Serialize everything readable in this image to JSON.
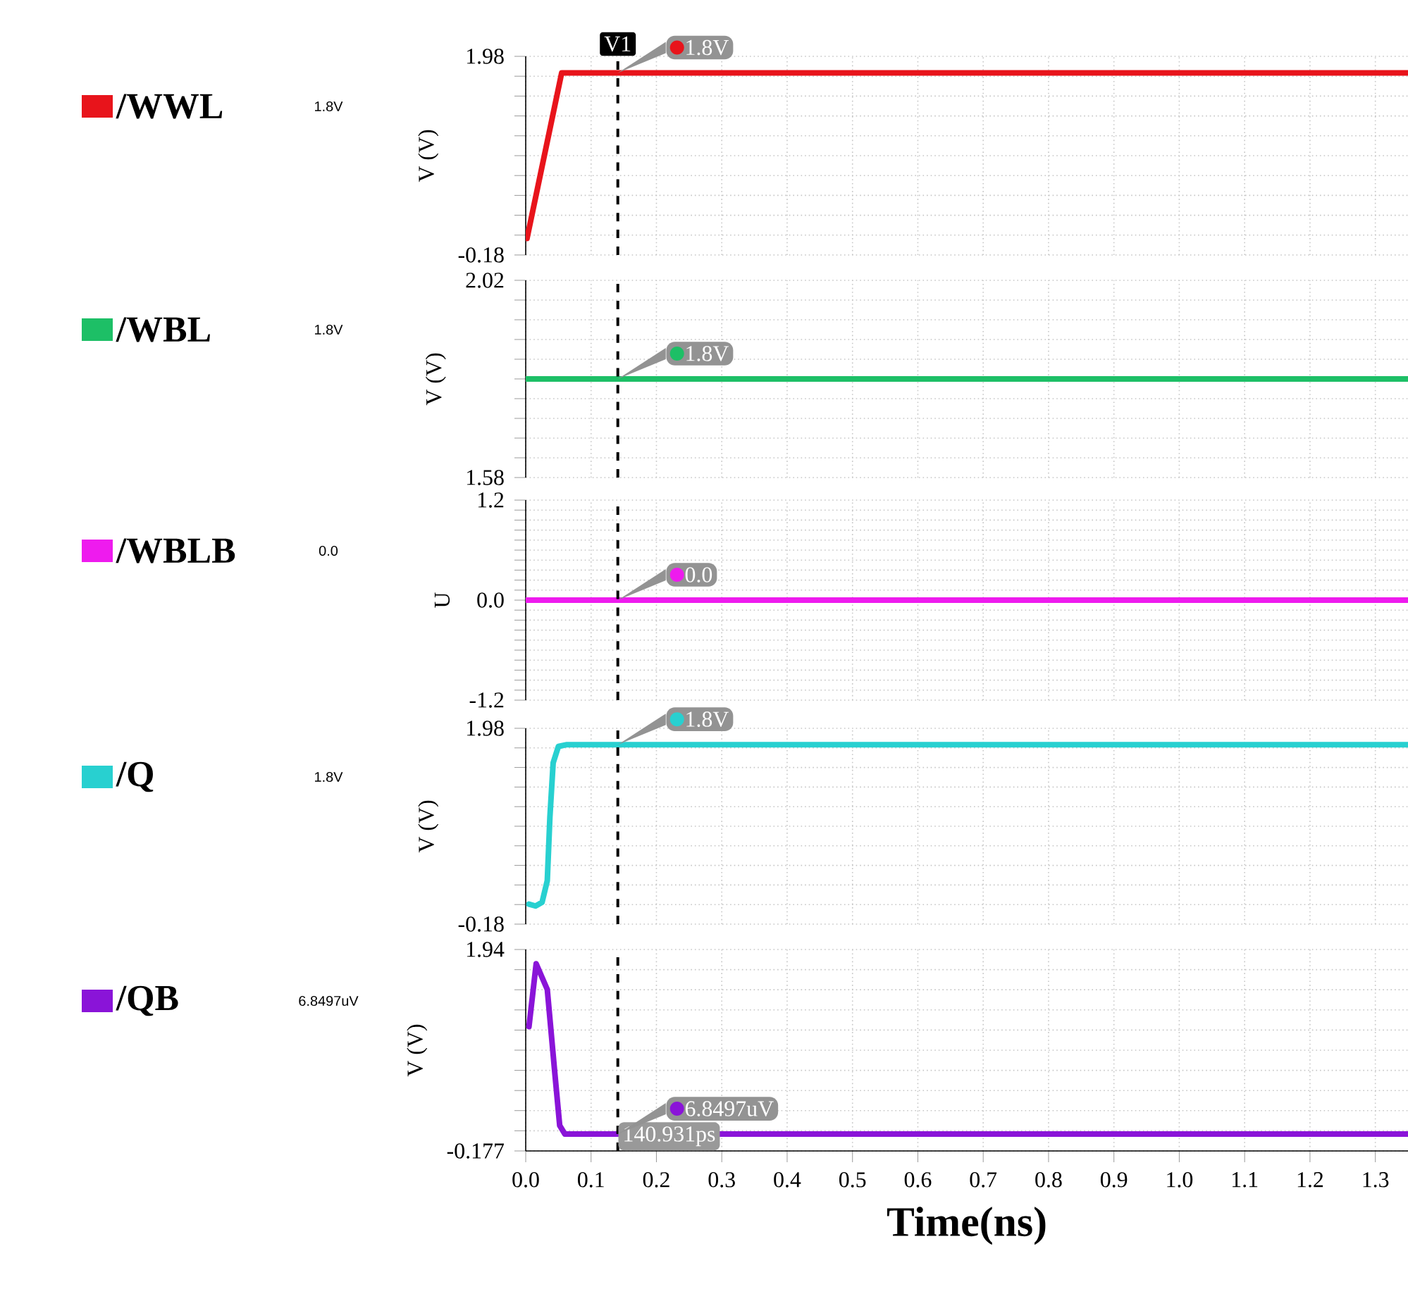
{
  "chart_data": [
    {
      "type": "line",
      "ylabel": "V (V)",
      "legend": "left",
      "grid": true,
      "tick_labels": "y",
      "series": [
        {
          "name": "/WWL",
          "color": "#e8141b",
          "x": [
            0.002,
            0.055,
            1.35
          ],
          "values": [
            0.0,
            1.8,
            1.8
          ]
        }
      ],
      "xlim": [
        0,
        1.35
      ],
      "ylim": [
        -0.18,
        1.98
      ],
      "xticks": [
        0,
        0.1,
        0.2,
        0.3,
        0.4,
        0.5,
        0.6,
        0.7,
        0.8,
        0.9,
        1,
        1.1,
        1.2,
        1.3
      ],
      "yticks": [
        -0.18,
        {
          "value": 0.036,
          "label": null
        },
        {
          "value": 0.252,
          "label": null
        },
        {
          "value": 0.468,
          "label": null
        },
        {
          "value": 0.684,
          "label": null
        },
        {
          "value": 0.9,
          "label": null
        },
        {
          "value": 1.116,
          "label": null
        },
        {
          "value": 1.332,
          "label": null
        },
        {
          "value": 1.548,
          "label": null
        },
        {
          "value": 1.764,
          "label": null
        },
        1.98
      ],
      "ref_lines": [
        {
          "axis": "x",
          "value": 0.140931,
          "label": "V1",
          "line_style": "dashed",
          "color": "#000000"
        }
      ],
      "annotations": [
        "1.8V",
        "1.8V"
      ]
    },
    {
      "type": "line",
      "ylabel": "V (V)",
      "legend": "left",
      "grid": true,
      "tick_labels": "y",
      "series": [
        {
          "name": "/WBL",
          "color": "#1dbf66",
          "x": [
            0,
            1.35
          ],
          "values": [
            1.8,
            1.8
          ]
        }
      ],
      "xlim": [
        0,
        1.35
      ],
      "ylim": [
        1.58,
        2.02
      ],
      "xticks": [
        0,
        0.1,
        0.2,
        0.3,
        0.4,
        0.5,
        0.6,
        0.7,
        0.8,
        0.9,
        1,
        1.1,
        1.2,
        1.3
      ],
      "yticks": [
        1.58,
        {
          "value": 1.624,
          "label": null
        },
        {
          "value": 1.668,
          "label": null
        },
        {
          "value": 1.712,
          "label": null
        },
        {
          "value": 1.756,
          "label": null
        },
        {
          "value": 1.8,
          "label": null
        },
        {
          "value": 1.844,
          "label": null
        },
        {
          "value": 1.888,
          "label": null
        },
        {
          "value": 1.932,
          "label": null
        },
        {
          "value": 1.976,
          "label": null
        },
        2.02
      ],
      "ref_lines": [
        {
          "axis": "x",
          "value": 0.140931,
          "line_style": "dashed",
          "color": "#000000"
        }
      ],
      "annotations": [
        "1.8V",
        "1.8V"
      ]
    },
    {
      "type": "line",
      "ylabel": "U",
      "legend": "left",
      "grid": true,
      "tick_labels": "y",
      "series": [
        {
          "name": "/WBLB",
          "color": "#ee1bee",
          "x": [
            0,
            1.35
          ],
          "values": [
            0.0,
            0.0
          ]
        }
      ],
      "xlim": [
        0,
        1.35
      ],
      "ylim": [
        -1.2,
        1.2
      ],
      "xticks": [
        0,
        0.1,
        0.2,
        0.3,
        0.4,
        0.5,
        0.6,
        0.7,
        0.8,
        0.9,
        1,
        1.1,
        1.2,
        1.3
      ],
      "yticks": [
        -1.2,
        {
          "value": -1.08,
          "label": null
        },
        {
          "value": -0.96,
          "label": null
        },
        {
          "value": -0.84,
          "label": null
        },
        {
          "value": -0.72,
          "label": null
        },
        {
          "value": -0.6,
          "label": null
        },
        {
          "value": -0.48,
          "label": null
        },
        {
          "value": -0.36,
          "label": null
        },
        {
          "value": -0.24,
          "label": null
        },
        {
          "value": -0.12,
          "label": null
        },
        {
          "value": 0,
          "label": "0.0"
        },
        {
          "value": 0.12,
          "label": null
        },
        {
          "value": 0.24,
          "label": null
        },
        {
          "value": 0.36,
          "label": null
        },
        {
          "value": 0.48,
          "label": null
        },
        {
          "value": 0.6,
          "label": null
        },
        {
          "value": 0.72,
          "label": null
        },
        {
          "value": 0.84,
          "label": null
        },
        {
          "value": 0.96,
          "label": null
        },
        {
          "value": 1.08,
          "label": null
        },
        1.2
      ],
      "ref_lines": [
        {
          "axis": "x",
          "value": 0.140931,
          "line_style": "dashed",
          "color": "#000000"
        }
      ],
      "annotations": [
        "0.0",
        "0.0"
      ]
    },
    {
      "type": "line",
      "ylabel": "V (V)",
      "legend": "left",
      "grid": true,
      "tick_labels": "y",
      "series": [
        {
          "name": "/Q",
          "color": "#28d0d0",
          "x": [
            0.005,
            0.015,
            0.025,
            0.033,
            0.037,
            0.042,
            0.05,
            0.063,
            1.35
          ],
          "values": [
            0.04,
            0.02,
            0.06,
            0.3,
            1.0,
            1.6,
            1.78,
            1.8,
            1.8
          ]
        }
      ],
      "xlim": [
        0,
        1.35
      ],
      "ylim": [
        -0.18,
        1.98
      ],
      "xticks": [
        0,
        0.1,
        0.2,
        0.3,
        0.4,
        0.5,
        0.6,
        0.7,
        0.8,
        0.9,
        1,
        1.1,
        1.2,
        1.3
      ],
      "yticks": [
        -0.18,
        {
          "value": 0.036,
          "label": null
        },
        {
          "value": 0.252,
          "label": null
        },
        {
          "value": 0.468,
          "label": null
        },
        {
          "value": 0.684,
          "label": null
        },
        {
          "value": 0.9,
          "label": null
        },
        {
          "value": 1.116,
          "label": null
        },
        {
          "value": 1.332,
          "label": null
        },
        {
          "value": 1.548,
          "label": null
        },
        {
          "value": 1.764,
          "label": null
        },
        1.98
      ],
      "ref_lines": [
        {
          "axis": "x",
          "value": 0.140931,
          "line_style": "dashed",
          "color": "#000000"
        }
      ],
      "annotations": [
        "1.8V",
        "1.8V"
      ]
    },
    {
      "type": "line",
      "ylabel": "V (V)",
      "xlabel": "Time(ns)",
      "legend": "left",
      "grid": true,
      "series": [
        {
          "name": "/QB",
          "color": "#8a14d8",
          "x": [
            0.005,
            0.016,
            0.033,
            0.044,
            0.052,
            0.06,
            1.35
          ],
          "values": [
            1.13,
            1.79,
            1.52,
            0.68,
            0.09,
            0.0,
            0.0
          ]
        }
      ],
      "xlim": [
        0,
        1.35
      ],
      "ylim": [
        -0.177,
        1.94
      ],
      "xticks": [
        {
          "value": 0,
          "label": "0.0"
        },
        0.1,
        0.2,
        0.3,
        0.4,
        0.5,
        0.6,
        0.7,
        0.8,
        0.9,
        {
          "value": 1,
          "label": "1.0"
        },
        1.1,
        1.2,
        1.3
      ],
      "yticks": [
        -0.177,
        {
          "value": 0.035,
          "label": null
        },
        {
          "value": 0.247,
          "label": null
        },
        {
          "value": 0.458,
          "label": null
        },
        {
          "value": 0.67,
          "label": null
        },
        {
          "value": 0.882,
          "label": null
        },
        {
          "value": 1.093,
          "label": null
        },
        {
          "value": 1.305,
          "label": null
        },
        {
          "value": 1.517,
          "label": null
        },
        {
          "value": 1.728,
          "label": null
        },
        1.94
      ],
      "ref_lines": [
        {
          "axis": "x",
          "value": 0.140931,
          "label": "140.931ps",
          "line_style": "dashed",
          "color": "#000000"
        }
      ],
      "annotations": [
        "6.8497uV",
        "6.8497uV"
      ]
    }
  ]
}
